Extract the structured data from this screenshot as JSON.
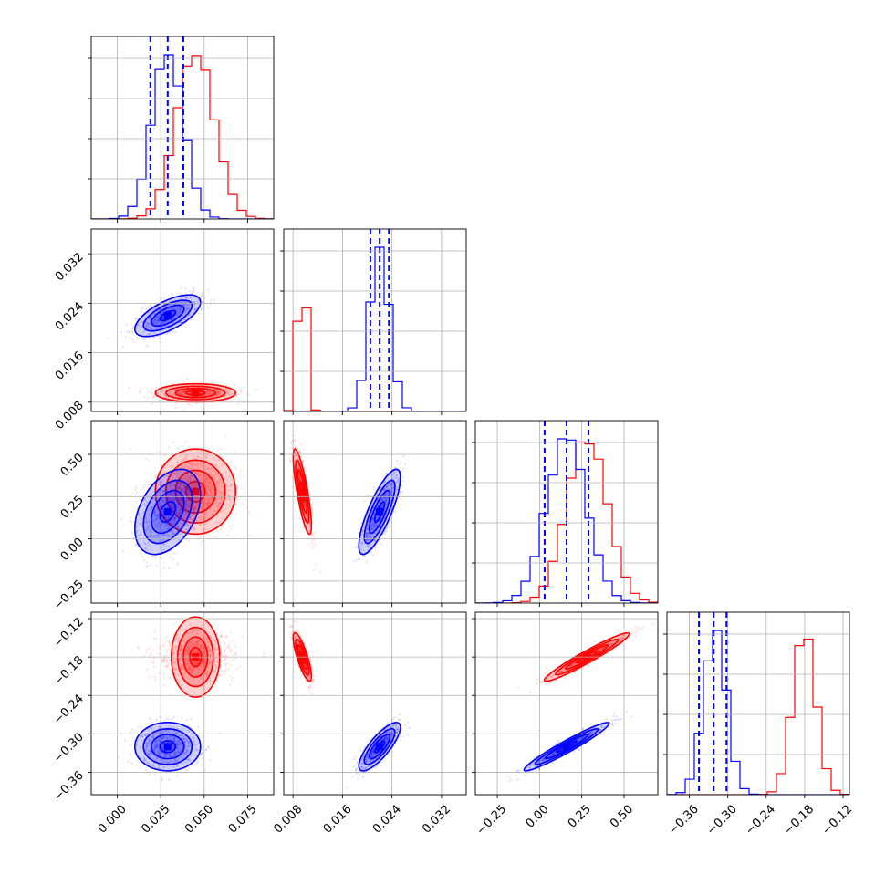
{
  "chart_data": {
    "type": "corner",
    "parameters": 4,
    "grid": true,
    "colors": {
      "a": "#ff0000",
      "b": "#0000ff"
    },
    "axes": [
      {
        "range": [
          -0.015,
          0.09
        ],
        "ticks": [
          0.0,
          0.025,
          0.05,
          0.075
        ],
        "tick_labels": [
          "0.000",
          "0.025",
          "0.050",
          "0.075"
        ]
      },
      {
        "range": [
          0.0065,
          0.036
        ],
        "ticks": [
          0.008,
          0.016,
          0.024,
          0.032
        ],
        "tick_labels": [
          "0.008",
          "0.016",
          "0.024",
          "0.032"
        ]
      },
      {
        "range": [
          -0.38,
          0.7
        ],
        "ticks": [
          -0.25,
          0.0,
          0.25,
          0.5
        ],
        "tick_labels": [
          "−0.25",
          "0.00",
          "0.25",
          "0.50"
        ]
      },
      {
        "range": [
          -0.395,
          -0.11
        ],
        "ticks": [
          -0.36,
          -0.3,
          -0.24,
          -0.18,
          -0.12
        ],
        "tick_labels": [
          "−0.36",
          "−0.30",
          "−0.24",
          "−0.18",
          "−0.12"
        ]
      }
    ],
    "series": [
      {
        "color": "#ff0000",
        "means": [
          0.045,
          0.0095,
          0.28,
          -0.18
        ],
        "sds": [
          0.011,
          0.0007,
          0.12,
          0.018
        ],
        "correlations": {
          "0-1": 0.0,
          "0-2": 0.0,
          "0-3": 0.0,
          "1-2": -0.8,
          "1-3": -0.8,
          "2-3": 0.96
        }
      },
      {
        "color": "#0000ff",
        "means": [
          0.029,
          0.022,
          0.16,
          -0.32
        ],
        "sds": [
          0.009,
          0.0016,
          0.12,
          0.018
        ],
        "correlations": {
          "0-1": 0.65,
          "0-2": 0.4,
          "0-3": 0.0,
          "1-2": 0.8,
          "1-3": 0.8,
          "2-3": 0.96
        }
      }
    ],
    "quantile_lines": {
      "color": "#0000ff",
      "diag_0": [
        0.019,
        0.029,
        0.038
      ],
      "diag_1": [
        0.0205,
        0.022,
        0.0235
      ],
      "diag_2": [
        0.03,
        0.16,
        0.29
      ],
      "diag_3": [
        -0.345,
        -0.322,
        -0.302
      ]
    }
  }
}
